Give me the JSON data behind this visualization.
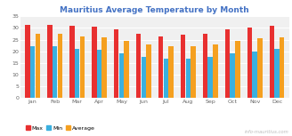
{
  "title": "Mauritius Average Temperature by Month",
  "title_color": "#4472c4",
  "months": [
    "Jan",
    "Feb",
    "Mar",
    "Apr",
    "May",
    "Jun",
    "Jul",
    "Aug",
    "Sep",
    "Oct",
    "Nov",
    "Dec"
  ],
  "max_temps": [
    31.5,
    31.5,
    31.0,
    30.5,
    29.5,
    27.5,
    26.5,
    27.0,
    27.5,
    29.5,
    30.0,
    31.0
  ],
  "min_temps": [
    22.0,
    22.0,
    21.0,
    20.5,
    19.0,
    17.5,
    17.0,
    17.0,
    17.5,
    19.0,
    20.0,
    21.0
  ],
  "avg_temps": [
    27.5,
    27.5,
    26.5,
    26.0,
    24.5,
    23.0,
    22.0,
    22.0,
    23.0,
    24.5,
    25.5,
    26.0
  ],
  "bar_color_max": "#e83030",
  "bar_color_min": "#3ab0e0",
  "bar_color_avg": "#f5a020",
  "ylim": [
    0,
    35
  ],
  "yticks": [
    0,
    5,
    10,
    15,
    20,
    25,
    30,
    35
  ],
  "background_color": "#ffffff",
  "plot_bg_color": "#f0f0f0",
  "grid_color": "#ffffff",
  "watermark": "info-mauritius.com",
  "legend_labels": [
    "Max",
    "Min",
    "Average"
  ]
}
